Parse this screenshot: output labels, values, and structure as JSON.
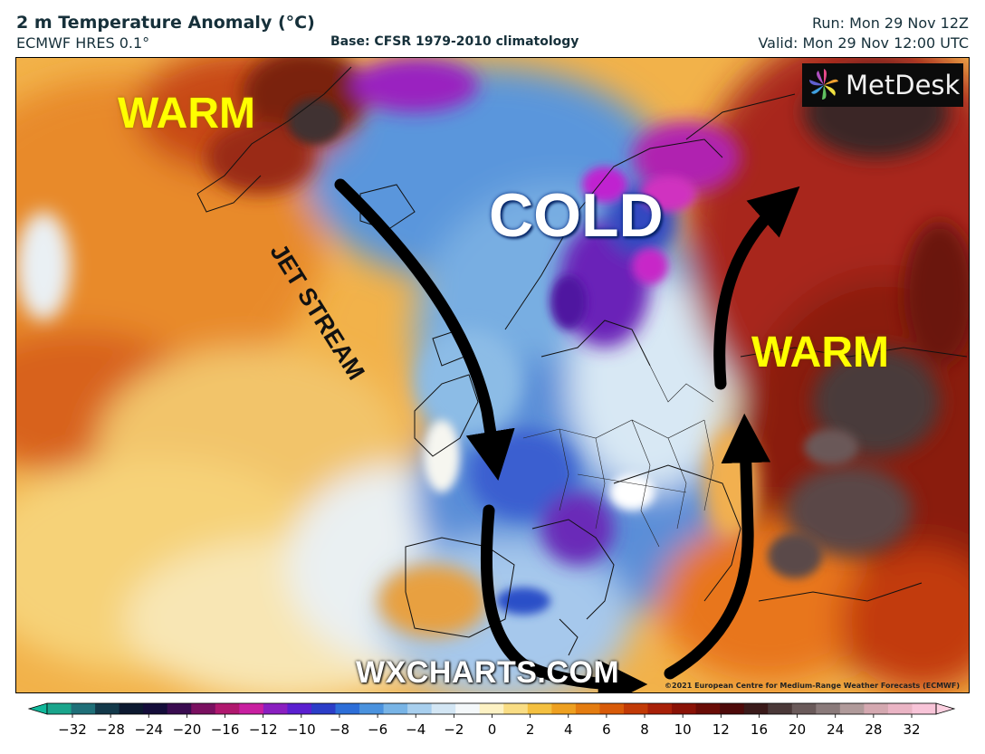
{
  "header": {
    "title": "2 m Temperature Anomaly (°C)",
    "model": "ECMWF HRES 0.1°",
    "base": "Base: CFSR 1979-2010 climatology",
    "run": "Run: Mon 29 Nov 12Z",
    "valid": "Valid: Mon 29 Nov 12:00 UTC"
  },
  "map": {
    "labels": {
      "warm_left": "WARM",
      "warm_right": "WARM",
      "cold": "COLD",
      "jet_stream": "JET STREAM"
    },
    "watermark": "WXCHARTS.COM",
    "copyright": "©2021 European Centre for Medium-Range Weather Forecasts (ECMWF)",
    "logo_text": "MetDesk",
    "logo_icon": "pinwheel-icon"
  },
  "colorbar": {
    "ticks": [
      "−32",
      "−28",
      "−24",
      "−20",
      "−16",
      "−12",
      "−10",
      "−8",
      "−6",
      "−4",
      "−2",
      "0",
      "2",
      "4",
      "6",
      "8",
      "10",
      "12",
      "16",
      "20",
      "24",
      "28",
      "32"
    ],
    "colors": [
      "#1aa58c",
      "#1f6f78",
      "#13394a",
      "#0c1930",
      "#140d3a",
      "#3a0c50",
      "#7a1060",
      "#b0186e",
      "#c81fa0",
      "#8a1fc0",
      "#5a1fd0",
      "#2b3dc8",
      "#2d6ed8",
      "#4a92de",
      "#78b4e6",
      "#a8cfee",
      "#d3e6f4",
      "#f4f8fa",
      "#fdf2c4",
      "#f9dd84",
      "#f4c040",
      "#eea020",
      "#e47c10",
      "#d85a08",
      "#c23a06",
      "#a82008",
      "#8a1206",
      "#6a0c06",
      "#4e0a0a",
      "#3a1a1a",
      "#4a3838",
      "#6a5a5a",
      "#8a7a7a",
      "#b09a9a",
      "#d4a8b0",
      "#eab4c4",
      "#f8c4d8"
    ],
    "left_extend_color": "#10b89a",
    "right_extend_color": "#fcd0e0"
  }
}
